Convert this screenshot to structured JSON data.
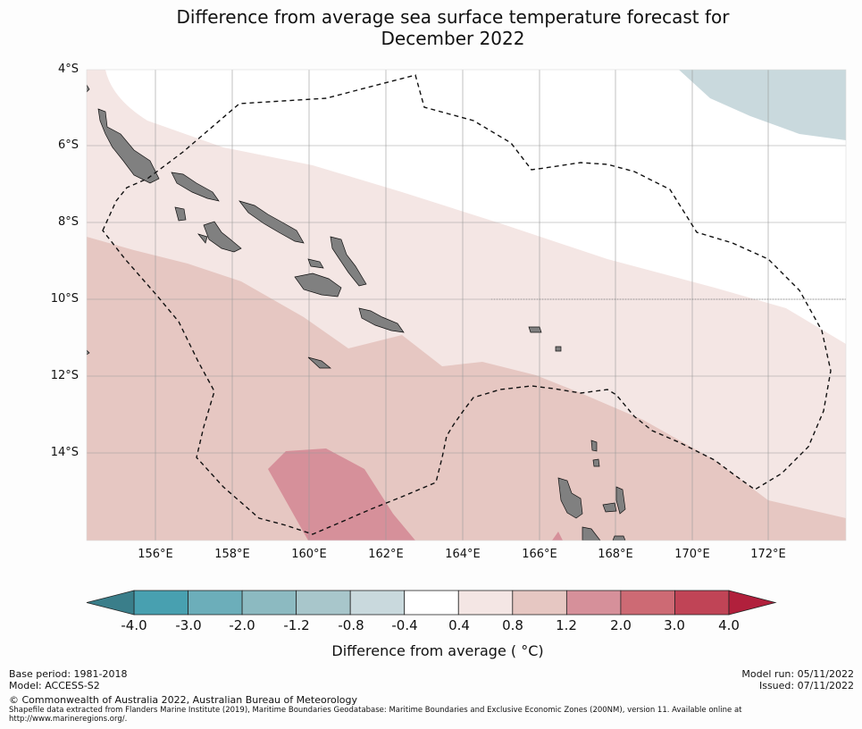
{
  "title": {
    "line1": "Difference from average sea surface temperature forecast for",
    "line2": "December 2022"
  },
  "axes": {
    "lat_labels": [
      "4°S",
      "6°S",
      "8°S",
      "10°S",
      "12°S",
      "14°S"
    ],
    "lon_labels": [
      "156°E",
      "158°E",
      "160°E",
      "162°E",
      "164°E",
      "166°E",
      "168°E",
      "170°E",
      "172°E"
    ]
  },
  "map": {
    "region_lat": [
      -4,
      -16.3
    ],
    "region_lon": [
      154.2,
      174
    ],
    "boundary_style": "dashed",
    "land_color": "#808080"
  },
  "colorbar": {
    "ticks": [
      "-4.0",
      "-3.0",
      "-2.0",
      "-1.2",
      "-0.8",
      "-0.4",
      "0.4",
      "0.8",
      "1.2",
      "2.0",
      "3.0",
      "4.0"
    ],
    "label": "Difference from average ( °C)",
    "colors": [
      "#48a0b0",
      "#6caeba",
      "#8cbac1",
      "#a8c6cb",
      "#c9d9dd",
      "#ffffff",
      "#f4e6e4",
      "#e6c7c2",
      "#d6909a",
      "#cd6a74",
      "#c04456"
    ],
    "extend_low_color": "#3a7e8a",
    "extend_high_color": "#b1203c"
  },
  "footer": {
    "base_period": "Base period: 1981-2018",
    "model": "Model: ACCESS-S2",
    "model_run": "Model run: 05/11/2022",
    "issued": "Issued: 07/11/2022",
    "copyright": "© Commonwealth of Australia 2022, Australian Bureau of Meteorology",
    "shapefile_line1": "Shapefile data extracted from Flanders Marine Institute (2019), Maritime Boundaries Geodatabase: Maritime Boundaries and Exclusive Economic Zones (200NM), version 11. Available online at",
    "shapefile_line2": "http://www.marineregions.org/."
  }
}
